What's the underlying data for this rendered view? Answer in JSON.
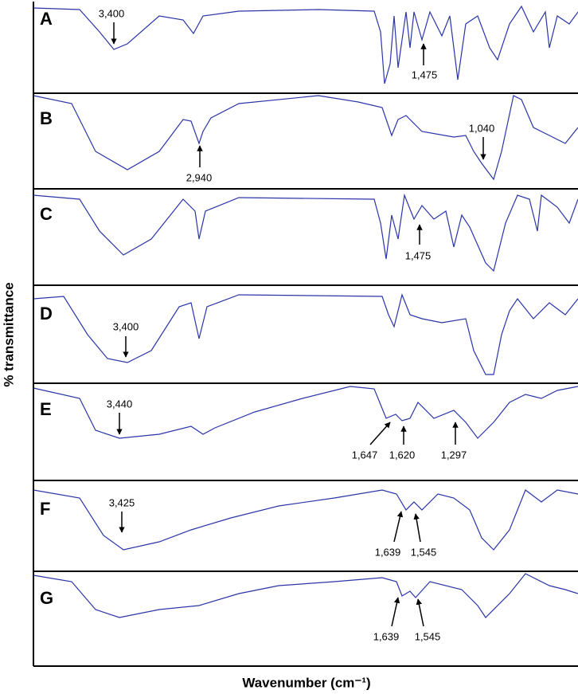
{
  "y_axis_label": "% transmittance",
  "x_axis_label": "Wavenumber (cm⁻¹)",
  "panels": [
    {
      "label": "A",
      "annotations": [
        "3,400",
        "1,475"
      ]
    },
    {
      "label": "B",
      "annotations": [
        "2,940",
        "1,040"
      ]
    },
    {
      "label": "C",
      "annotations": [
        "1,475"
      ]
    },
    {
      "label": "D",
      "annotations": [
        "3,400"
      ]
    },
    {
      "label": "E",
      "annotations": [
        "3,440",
        "1,647",
        "1,620",
        "1,297"
      ]
    },
    {
      "label": "F",
      "annotations": [
        "3,425",
        "1,639",
        "1,545"
      ]
    },
    {
      "label": "G",
      "annotations": [
        "1,639",
        "1,545"
      ]
    }
  ]
}
